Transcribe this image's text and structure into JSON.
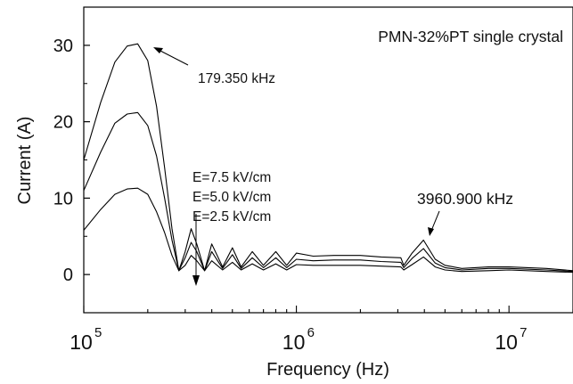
{
  "chart_data": {
    "type": "line",
    "xlabel": "Frequency (Hz)",
    "ylabel": "Current (A)",
    "x_scale": "log",
    "xlim": [
      100000,
      20000000
    ],
    "ylim": [
      -5,
      35
    ],
    "x_tick_values": [
      100000,
      1000000,
      10000000
    ],
    "x_tick_labels": [
      {
        "base": "10",
        "exp": "5"
      },
      {
        "base": "10",
        "exp": "6"
      },
      {
        "base": "10",
        "exp": "7"
      }
    ],
    "y_ticks": [
      0,
      10,
      20,
      30
    ],
    "y_tick_labels": [
      "0",
      "10",
      "20",
      "30"
    ],
    "legend_placement": "top-right",
    "line_color": "#000000",
    "grid": false,
    "text_labels": {
      "material": "PMN-32%PT single crystal",
      "peak_low": "179.350 kHz",
      "peak_high": "3960.900 kHz",
      "field_labels": [
        "E=7.5 kV/cm",
        "E=5.0 kV/cm",
        "E=2.5 kV/cm"
      ]
    },
    "series": [
      {
        "name": "E=7.5 kV/cm",
        "x": [
          100000,
          120000,
          140000,
          160000,
          179350,
          200000,
          220000,
          240000,
          260000,
          280000,
          300000,
          320000,
          340000,
          370000,
          400000,
          450000,
          500000,
          550000,
          620000,
          700000,
          800000,
          900000,
          1000000,
          1200000,
          1500000,
          2000000,
          2500000,
          3100000,
          3200000,
          3500000,
          3960900,
          4500000,
          5000000,
          6000000,
          8000000,
          10000000,
          15000000,
          20000000
        ],
        "y": [
          15,
          22.5,
          27.8,
          29.9,
          30.2,
          28,
          22,
          14,
          6,
          0.5,
          3,
          6,
          4,
          0.5,
          4,
          1,
          3.5,
          1,
          3,
          1.2,
          3,
          1.2,
          2.8,
          2.4,
          2.5,
          2.5,
          2.3,
          2.2,
          1.2,
          2.8,
          4.5,
          2,
          1.2,
          0.8,
          1,
          1,
          0.8,
          0.5
        ]
      },
      {
        "name": "E=5.0 kV/cm",
        "x": [
          100000,
          120000,
          140000,
          160000,
          179350,
          200000,
          220000,
          240000,
          260000,
          280000,
          300000,
          320000,
          340000,
          370000,
          400000,
          450000,
          500000,
          550000,
          620000,
          700000,
          800000,
          900000,
          1000000,
          1200000,
          1500000,
          2000000,
          2500000,
          3100000,
          3200000,
          3500000,
          3960900,
          4500000,
          5000000,
          6000000,
          8000000,
          10000000,
          15000000,
          20000000
        ],
        "y": [
          11,
          16,
          19.8,
          21,
          21.2,
          19.5,
          15.5,
          10,
          4.5,
          0.5,
          2.2,
          4.2,
          3,
          0.5,
          3,
          0.8,
          2.6,
          0.8,
          2.2,
          0.9,
          2.2,
          0.9,
          2,
          1.8,
          1.9,
          1.9,
          1.7,
          1.6,
          0.9,
          2.1,
          3.4,
          1.5,
          0.9,
          0.6,
          0.8,
          0.8,
          0.6,
          0.4
        ]
      },
      {
        "name": "E=2.5 kV/cm",
        "x": [
          100000,
          120000,
          140000,
          160000,
          179350,
          200000,
          220000,
          240000,
          260000,
          280000,
          300000,
          320000,
          340000,
          370000,
          400000,
          450000,
          500000,
          550000,
          620000,
          700000,
          800000,
          900000,
          1000000,
          1200000,
          1500000,
          2000000,
          2500000,
          3100000,
          3200000,
          3500000,
          3960900,
          4500000,
          5000000,
          6000000,
          8000000,
          10000000,
          15000000,
          20000000
        ],
        "y": [
          5.8,
          8.5,
          10.5,
          11.2,
          11.3,
          10.5,
          8.2,
          5.5,
          2.5,
          0.5,
          1.2,
          2.5,
          1.8,
          0.5,
          1.8,
          0.6,
          1.6,
          0.6,
          1.4,
          0.6,
          1.4,
          0.6,
          1.3,
          1.2,
          1.2,
          1.2,
          1.1,
          1,
          0.6,
          1.3,
          2.3,
          1,
          0.6,
          0.4,
          0.5,
          0.6,
          0.4,
          0.3
        ]
      }
    ]
  }
}
